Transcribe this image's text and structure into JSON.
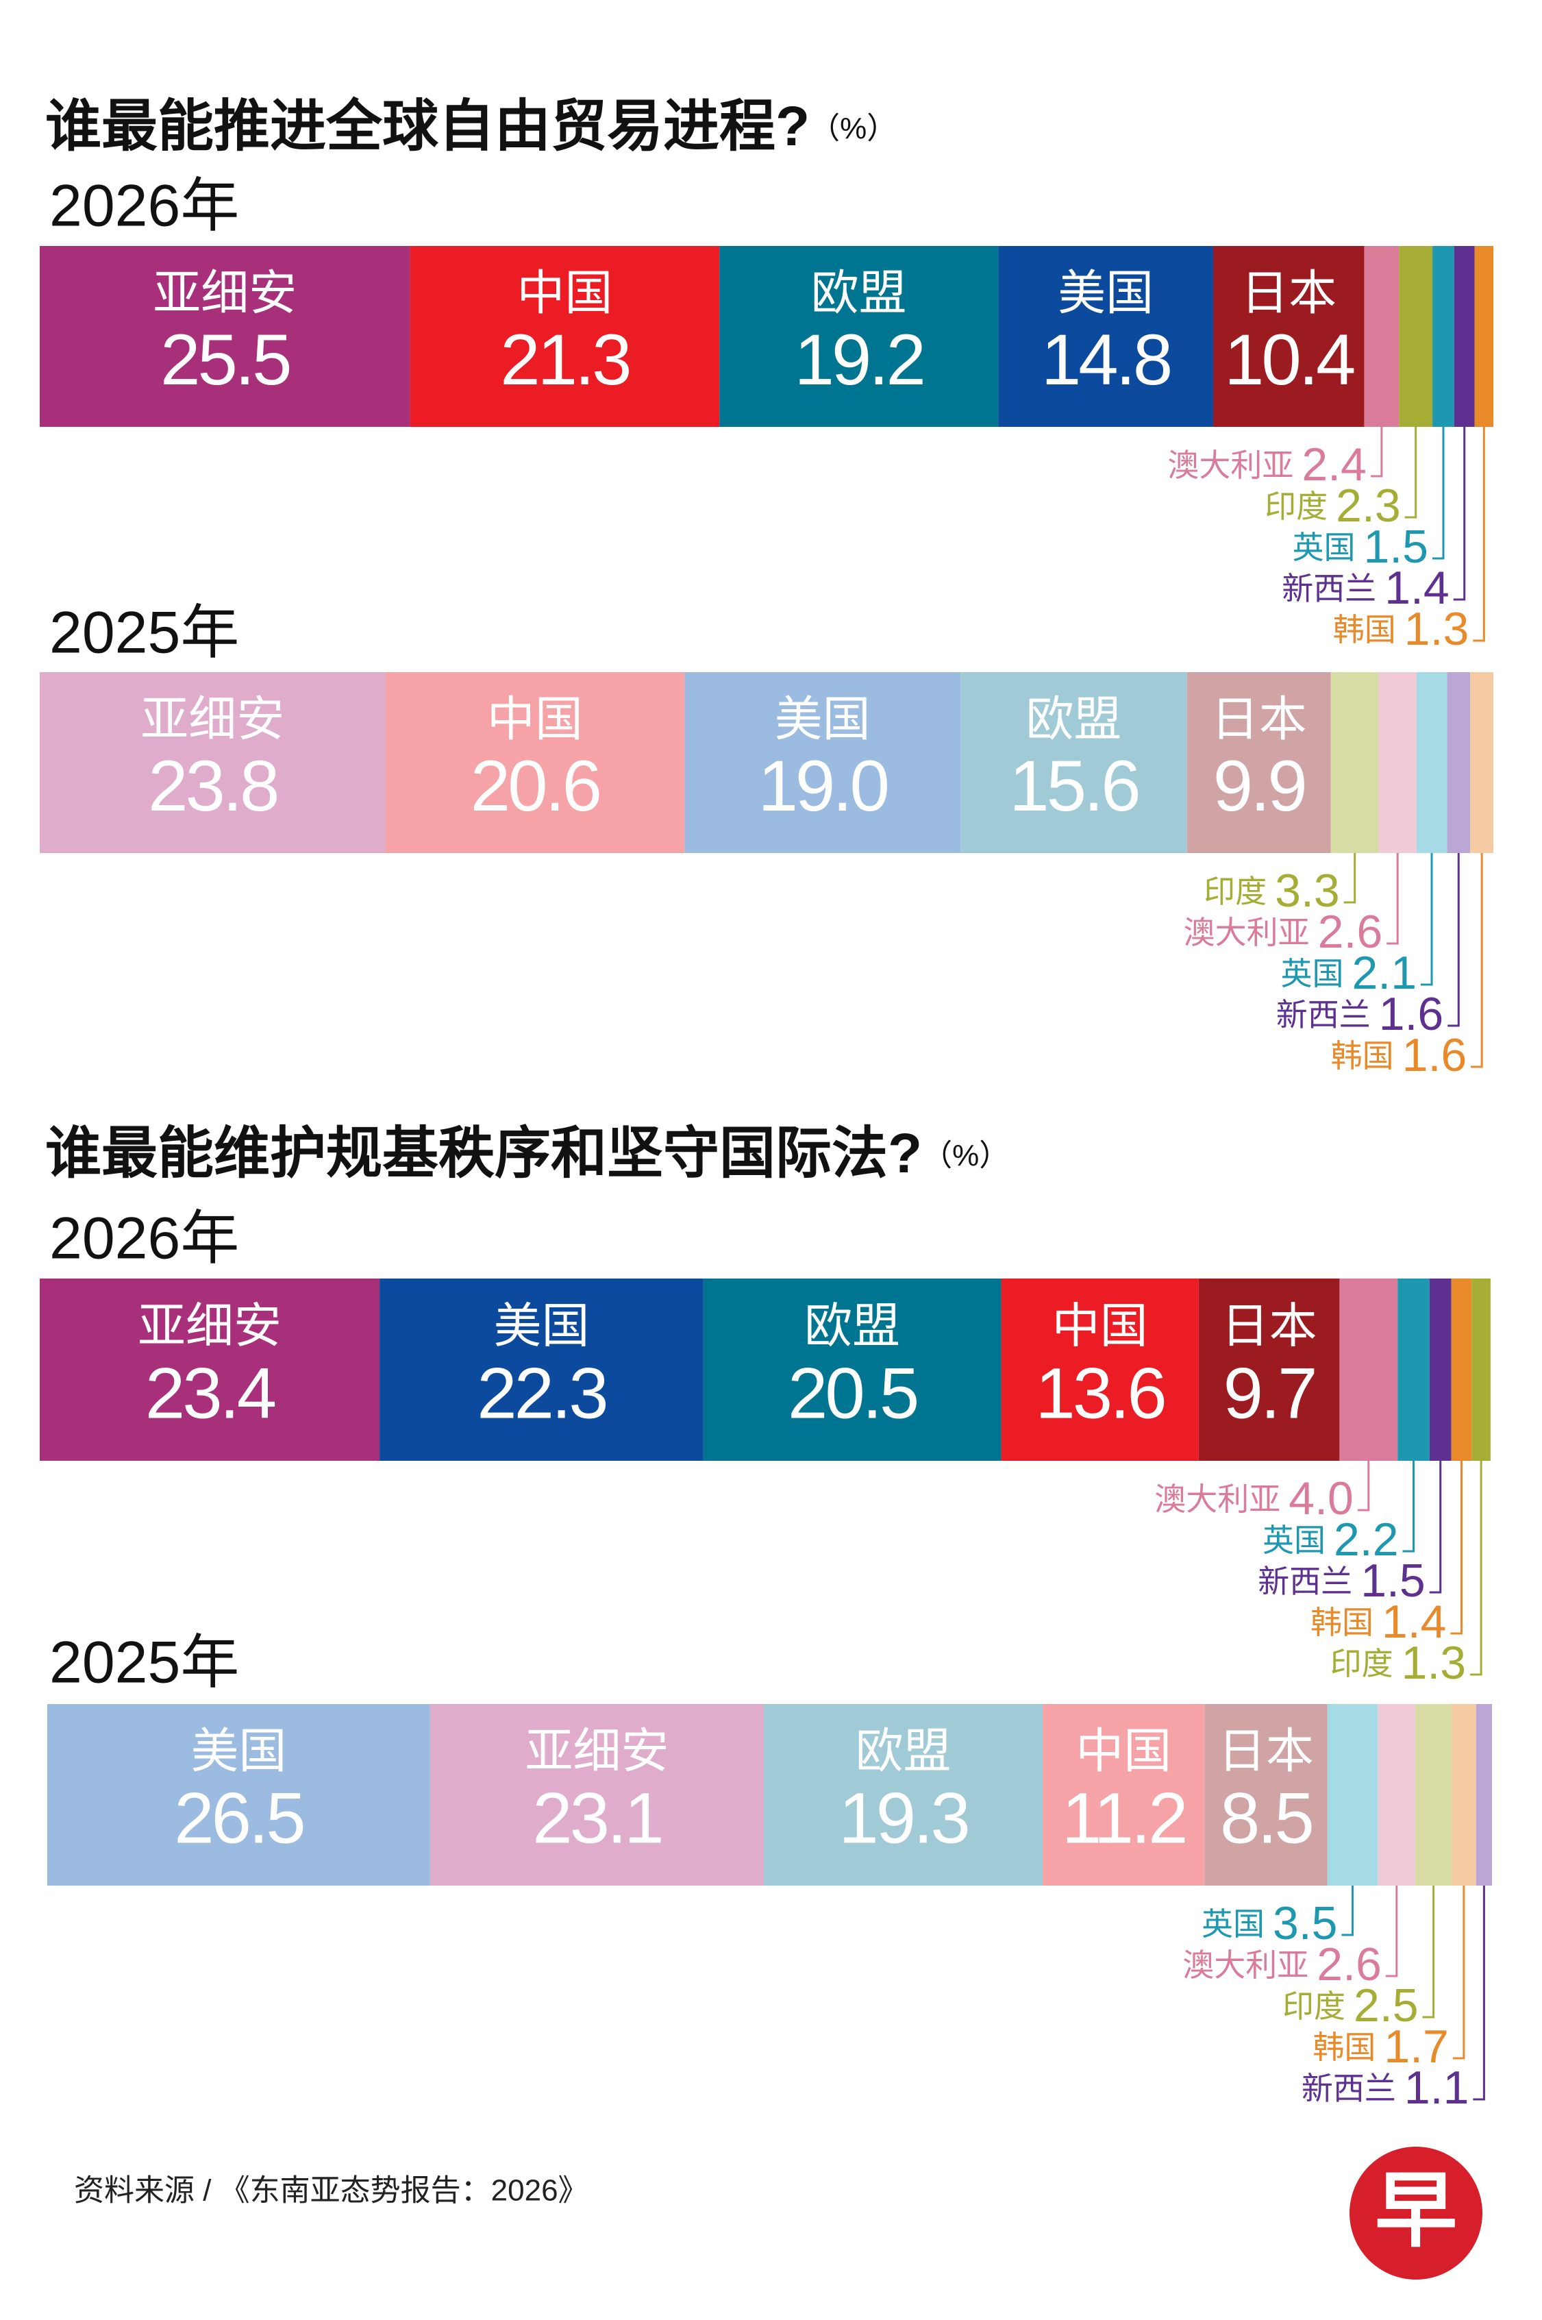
{
  "chart_data": [
    {
      "type": "stacked-bar",
      "title": "谁最能推进全球自由贸易进程?",
      "unit": "（%）",
      "label": "2026年",
      "xlim": [
        0,
        100
      ],
      "series": [
        {
          "name": "亚细安",
          "color": "#a8307a",
          "values": [
            25.5
          ]
        },
        {
          "name": "中国",
          "color": "#ec1c24",
          "values": [
            21.3
          ]
        },
        {
          "name": "欧盟",
          "color": "#007591",
          "values": [
            19.2
          ]
        },
        {
          "name": "美国",
          "color": "#0c4a9e",
          "values": [
            14.8
          ]
        },
        {
          "name": "日本",
          "color": "#9b1b20",
          "values": [
            10.4
          ]
        },
        {
          "name": "澳大利亚",
          "color": "#d97b99",
          "values": [
            2.4
          ]
        },
        {
          "name": "印度",
          "color": "#a5ad35",
          "values": [
            2.3
          ]
        },
        {
          "name": "英国",
          "color": "#1e98b0",
          "values": [
            1.5
          ]
        },
        {
          "name": "新西兰",
          "color": "#5e3190",
          "values": [
            1.4
          ]
        },
        {
          "name": "韩国",
          "color": "#e8892a",
          "values": [
            1.3
          ]
        }
      ]
    },
    {
      "type": "stacked-bar",
      "label": "2025年",
      "xlim": [
        0,
        100
      ],
      "series": [
        {
          "name": "亚细安",
          "color": "#dfadcb",
          "values": [
            23.8
          ]
        },
        {
          "name": "中国",
          "color": "#f5a3a7",
          "values": [
            20.6
          ]
        },
        {
          "name": "美国",
          "color": "#9bbbe0",
          "values": [
            19.0
          ],
          "value_labels": [
            "19.0"
          ]
        },
        {
          "name": "欧盟",
          "color": "#9fcad6",
          "values": [
            15.6
          ]
        },
        {
          "name": "日本",
          "color": "#d0a3a5",
          "values": [
            9.9
          ]
        },
        {
          "name": "印度",
          "color": "#d6dca3",
          "label_color": "#a5ad35",
          "values": [
            3.3
          ]
        },
        {
          "name": "澳大利亚",
          "color": "#f0cad7",
          "label_color": "#d97b99",
          "values": [
            2.6
          ]
        },
        {
          "name": "英国",
          "color": "#a6dbe6",
          "label_color": "#1e98b0",
          "values": [
            2.1
          ]
        },
        {
          "name": "新西兰",
          "color": "#bba7d6",
          "label_color": "#5e3190",
          "values": [
            1.6
          ]
        },
        {
          "name": "韩国",
          "color": "#f5cba3",
          "label_color": "#e8892a",
          "values": [
            1.6
          ]
        }
      ]
    },
    {
      "type": "stacked-bar",
      "title": "谁最能维护规基秩序和坚守国际法?",
      "unit": "（%）",
      "label": "2026年",
      "xlim": [
        0,
        100
      ],
      "series": [
        {
          "name": "亚细安",
          "color": "#a8307a",
          "values": [
            23.4
          ]
        },
        {
          "name": "美国",
          "color": "#0c4a9e",
          "values": [
            22.3
          ]
        },
        {
          "name": "欧盟",
          "color": "#007591",
          "values": [
            20.5
          ]
        },
        {
          "name": "中国",
          "color": "#ec1c24",
          "values": [
            13.6
          ]
        },
        {
          "name": "日本",
          "color": "#9b1b20",
          "values": [
            9.7
          ]
        },
        {
          "name": "澳大利亚",
          "color": "#d97b99",
          "values": [
            4.0
          ],
          "value_labels": [
            "4.0"
          ]
        },
        {
          "name": "英国",
          "color": "#1e98b0",
          "values": [
            2.2
          ]
        },
        {
          "name": "新西兰",
          "color": "#5e3190",
          "values": [
            1.5
          ]
        },
        {
          "name": "韩国",
          "color": "#e8892a",
          "values": [
            1.4
          ]
        },
        {
          "name": "印度",
          "color": "#a5ad35",
          "values": [
            1.3
          ]
        }
      ]
    },
    {
      "type": "stacked-bar",
      "label": "2025年",
      "xlim": [
        0,
        100
      ],
      "series": [
        {
          "name": "美国",
          "color": "#9bbbe0",
          "values": [
            26.5
          ]
        },
        {
          "name": "亚细安",
          "color": "#dfadcb",
          "values": [
            23.1
          ]
        },
        {
          "name": "欧盟",
          "color": "#9fcad6",
          "values": [
            19.3
          ]
        },
        {
          "name": "中国",
          "color": "#f5a3a7",
          "values": [
            11.2
          ]
        },
        {
          "name": "日本",
          "color": "#d0a3a5",
          "values": [
            8.5
          ]
        },
        {
          "name": "英国",
          "color": "#a6dbe6",
          "label_color": "#1e98b0",
          "values": [
            3.5
          ]
        },
        {
          "name": "澳大利亚",
          "color": "#f0cad7",
          "label_color": "#d97b99",
          "values": [
            2.6
          ]
        },
        {
          "name": "印度",
          "color": "#d6dca3",
          "label_color": "#a5ad35",
          "values": [
            2.5
          ]
        },
        {
          "name": "韩国",
          "color": "#f5cba3",
          "label_color": "#e8892a",
          "values": [
            1.7
          ]
        },
        {
          "name": "新西兰",
          "color": "#bba7d6",
          "label_color": "#5e3190",
          "values": [
            1.1
          ]
        }
      ]
    }
  ],
  "source": "资料来源 / 《东南亚态势报告：2026》",
  "logo": "早"
}
